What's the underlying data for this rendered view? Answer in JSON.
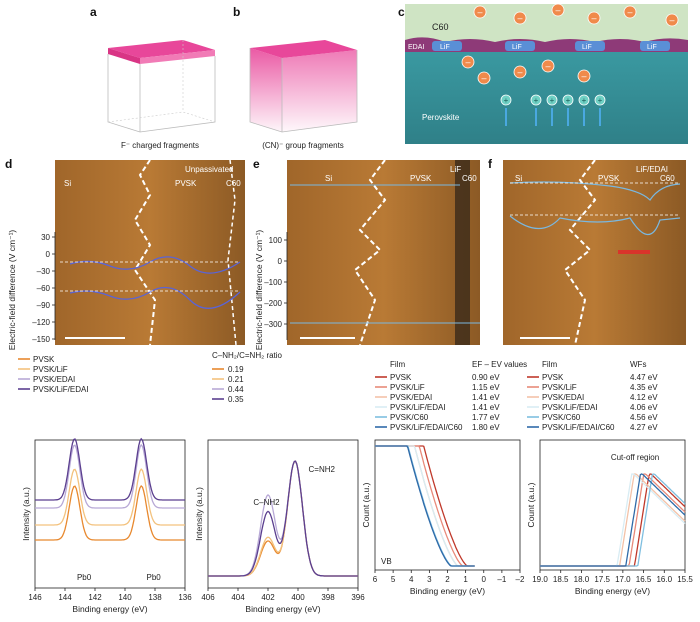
{
  "panels": {
    "a": {
      "label": "a",
      "caption": "F⁻ charged fragments"
    },
    "b": {
      "label": "b",
      "caption": "(CN)⁻ group fragments"
    },
    "c": {
      "label": "c",
      "c60": "C60",
      "edai": "EDAI",
      "lif": "LiF",
      "perovskite": "Perovskite"
    },
    "d": {
      "label": "d",
      "title": "Unpassivated",
      "si": "Si",
      "pvsk": "PVSK",
      "c60": "C60",
      "ylabel": "Electric-field difference (V cm⁻¹)",
      "yticks": [
        "30",
        "0",
        "–30",
        "–60",
        "–90",
        "–120",
        "–150"
      ]
    },
    "e": {
      "label": "e",
      "title": "LiF",
      "si": "Si",
      "pvsk": "PVSK",
      "c60": "C60",
      "ylabel": "Electric-field difference (V cm⁻¹)",
      "yticks": [
        "100",
        "0",
        "–100",
        "–200",
        "–300"
      ]
    },
    "f": {
      "label": "f",
      "title": "LiF/EDAI",
      "si": "Si",
      "pvsk": "PVSK",
      "c60": "C60"
    }
  },
  "legends": {
    "g": {
      "entries": [
        {
          "name": "PVSK",
          "color": "#e8892f"
        },
        {
          "name": "PVSK/LiF",
          "color": "#f3c27e"
        },
        {
          "name": "PVSK/EDAI",
          "color": "#b8a9d6"
        },
        {
          "name": "PVSK/LiF/EDAI",
          "color": "#5b3f8f"
        }
      ]
    },
    "h": {
      "title": "C–NH₂/C=NH₂ ratio",
      "values": [
        "0.19",
        "0.21",
        "0.44",
        "0.35"
      ]
    },
    "i": {
      "header_film": "Film",
      "header_values": "EF – EV values",
      "entries": [
        {
          "name": "PVSK",
          "value": "0.90 eV",
          "color": "#c0392b"
        },
        {
          "name": "PVSK/LiF",
          "value": "1.15 eV",
          "color": "#e88a7a"
        },
        {
          "name": "PVSK/EDAI",
          "value": "1.41 eV",
          "color": "#f3c2a8"
        },
        {
          "name": "PVSK/LiF/EDAI",
          "value": "1.41 eV",
          "color": "#d8ecf3"
        },
        {
          "name": "PVSK/C60",
          "value": "1.77 eV",
          "color": "#7fbfe0"
        },
        {
          "name": "PVSK/LiF/EDAI/C60",
          "value": "1.80 eV",
          "color": "#2f6aa8"
        }
      ]
    },
    "j": {
      "header_film": "Film",
      "header_values": "WFs",
      "entries": [
        {
          "name": "PVSK",
          "value": "4.47 eV",
          "color": "#c0392b"
        },
        {
          "name": "PVSK/LiF",
          "value": "4.35 eV",
          "color": "#e88a7a"
        },
        {
          "name": "PVSK/EDAI",
          "value": "4.12 eV",
          "color": "#f3c2a8"
        },
        {
          "name": "PVSK/LiF/EDAI",
          "value": "4.06 eV",
          "color": "#d8ecf3"
        },
        {
          "name": "PVSK/C60",
          "value": "4.56 eV",
          "color": "#7fbfe0"
        },
        {
          "name": "PVSK/LiF/EDAI/C60",
          "value": "4.27 eV",
          "color": "#2f6aa8"
        }
      ]
    }
  },
  "chart_data": [
    {
      "id": "g",
      "type": "line",
      "xlabel": "Binding energy (eV)",
      "ylabel": "Intensity (a.u.)",
      "xticks": [
        "146",
        "144",
        "142",
        "140",
        "138",
        "136"
      ],
      "xlim": [
        146,
        135
      ],
      "annotations": [
        "Pb0",
        "Pb0"
      ],
      "series": [
        {
          "name": "PVSK",
          "peaks": [
            143.1,
            138.2
          ]
        },
        {
          "name": "PVSK/LiF",
          "peaks": [
            143.1,
            138.2
          ]
        },
        {
          "name": "PVSK/EDAI",
          "peaks": [
            143.1,
            138.2
          ]
        },
        {
          "name": "PVSK/LiF/EDAI",
          "peaks": [
            143.1,
            138.2
          ]
        }
      ]
    },
    {
      "id": "h",
      "type": "line",
      "xlabel": "Binding energy (eV)",
      "ylabel": "Intensity (a.u.)",
      "xticks": [
        "406",
        "404",
        "402",
        "400",
        "398",
        "396"
      ],
      "xlim": [
        406,
        396
      ],
      "annotations": [
        "C–NH2",
        "C=NH2"
      ],
      "series": [
        {
          "name": "0.19",
          "peaks": [
            400.2,
            402.0
          ]
        },
        {
          "name": "0.21",
          "peaks": [
            400.2,
            402.0
          ]
        },
        {
          "name": "0.44",
          "peaks": [
            400.2,
            402.0
          ]
        },
        {
          "name": "0.35",
          "peaks": [
            400.2,
            402.0
          ]
        }
      ]
    },
    {
      "id": "i",
      "type": "line",
      "xlabel": "Binding energy (eV)",
      "ylabel": "Count (a.u.)",
      "xticks": [
        "6",
        "5",
        "4",
        "3",
        "2",
        "1",
        "0",
        "–1",
        "–2"
      ],
      "xlim": [
        6,
        -2
      ],
      "annotations": [
        "VB"
      ]
    },
    {
      "id": "j",
      "type": "line",
      "xlabel": "Binding energy (eV)",
      "ylabel": "Count (a.u.)",
      "xticks": [
        "19.0",
        "18.5",
        "18.0",
        "17.5",
        "17.0",
        "16.5",
        "16.0",
        "15.5"
      ],
      "xlim": [
        19.0,
        15.5
      ],
      "annotations": [
        "Cut-off region"
      ]
    }
  ]
}
